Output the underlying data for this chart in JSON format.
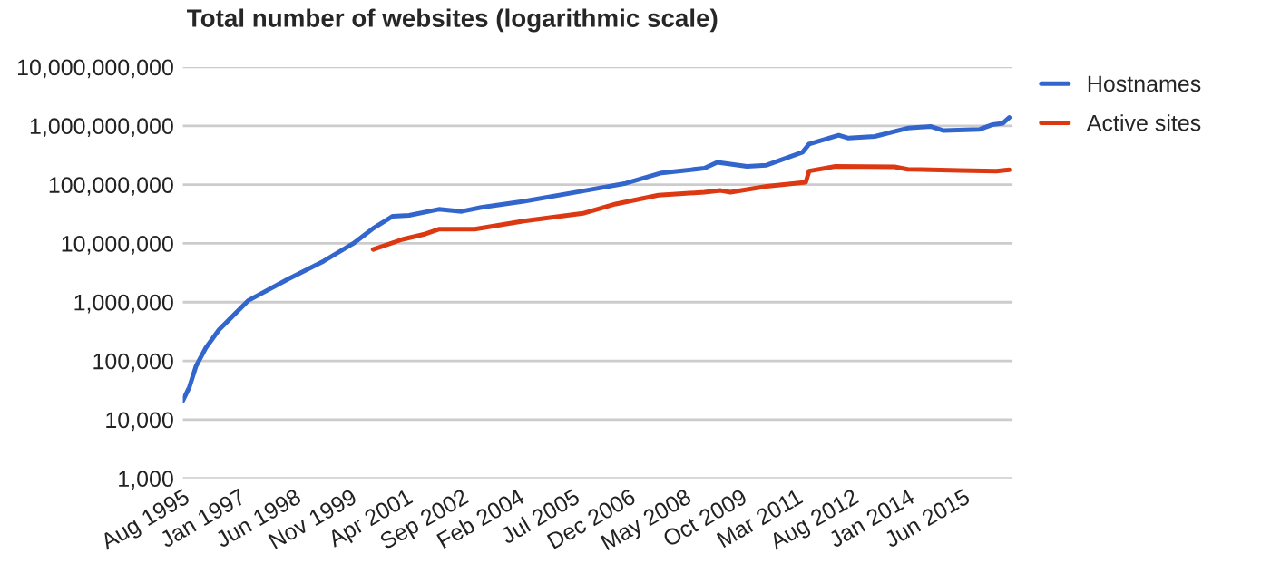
{
  "chart_data": {
    "type": "line",
    "title": "Total number of websites (logarithmic scale)",
    "series": [
      {
        "name": "Hostnames",
        "color": "#3366cc",
        "x": [
          "1995-08",
          "1995-10",
          "1995-12",
          "1996-03",
          "1996-07",
          "1997-04",
          "1998-04",
          "1999-03",
          "1999-12",
          "2000-06",
          "2000-12",
          "2001-05",
          "2002-02",
          "2002-09",
          "2003-03",
          "2004-04",
          "2005-10",
          "2006-11",
          "2007-10",
          "2008-11",
          "2009-03",
          "2009-12",
          "2010-06",
          "2011-05",
          "2011-07",
          "2012-04",
          "2012-07",
          "2013-03",
          "2014-01",
          "2014-08",
          "2014-12",
          "2015-11",
          "2016-03",
          "2016-06",
          "2016-08"
        ],
        "values": [
          21000,
          36000,
          81000,
          166000,
          339000,
          1070000,
          2450000,
          5000000,
          10000000,
          18000000,
          29000000,
          30000000,
          38000000,
          35000000,
          41000000,
          52000000,
          78000000,
          105000000,
          158000000,
          190000000,
          240000000,
          204000000,
          214000000,
          355000000,
          490000000,
          690000000,
          617000000,
          660000000,
          912000000,
          977000000,
          830000000,
          871000000,
          1050000000,
          1100000000,
          1380000000
        ]
      },
      {
        "name": "Active sites",
        "color": "#dc3912",
        "x": [
          "2000-06",
          "2001-03",
          "2001-10",
          "2002-02",
          "2003-01",
          "2004-04",
          "2005-10",
          "2006-08",
          "2007-09",
          "2008-11",
          "2009-04",
          "2009-07",
          "2010-06",
          "2011-06",
          "2011-07",
          "2012-03",
          "2013-09",
          "2014-01",
          "2015-05",
          "2016-04",
          "2016-08"
        ],
        "values": [
          7900000,
          11700000,
          14500000,
          17400000,
          17400000,
          24000000,
          32400000,
          46800000,
          66100000,
          74100000,
          79400000,
          74100000,
          93300000,
          110000000,
          170000000,
          204000000,
          200000000,
          182000000,
          174000000,
          170000000,
          178000000
        ]
      }
    ],
    "log": "y",
    "ylim": [
      1000,
      10000000000
    ],
    "yticks": [
      {
        "value": 1000,
        "label": "1,000"
      },
      {
        "value": 10000,
        "label": "10,000"
      },
      {
        "value": 100000,
        "label": "100,000"
      },
      {
        "value": 1000000,
        "label": "1,000,000"
      },
      {
        "value": 10000000,
        "label": "10,000,000"
      },
      {
        "value": 100000000,
        "label": "100,000,000"
      },
      {
        "value": 1000000000,
        "label": "1,000,000,000"
      },
      {
        "value": 10000000000,
        "label": "10,000,000,000"
      }
    ],
    "xlim": [
      "1995-08",
      "2016-09"
    ],
    "xticks": [
      {
        "value": "1995-08",
        "label": "Aug 1995"
      },
      {
        "value": "1997-01",
        "label": "Jan 1997"
      },
      {
        "value": "1998-06",
        "label": "Jun 1998"
      },
      {
        "value": "1999-11",
        "label": "Nov 1999"
      },
      {
        "value": "2001-04",
        "label": "Apr 2001"
      },
      {
        "value": "2002-09",
        "label": "Sep 2002"
      },
      {
        "value": "2004-02",
        "label": "Feb 2004"
      },
      {
        "value": "2005-07",
        "label": "Jul 2005"
      },
      {
        "value": "2006-12",
        "label": "Dec 2006"
      },
      {
        "value": "2008-05",
        "label": "May 2008"
      },
      {
        "value": "2009-10",
        "label": "Oct 2009"
      },
      {
        "value": "2011-03",
        "label": "Mar 2011"
      },
      {
        "value": "2012-08",
        "label": "Aug 2012"
      },
      {
        "value": "2014-01",
        "label": "Jan 2014"
      },
      {
        "value": "2015-06",
        "label": "Jun 2015"
      }
    ],
    "grid": "y",
    "legend": "top right",
    "marker": "none",
    "line_style": "solid"
  }
}
